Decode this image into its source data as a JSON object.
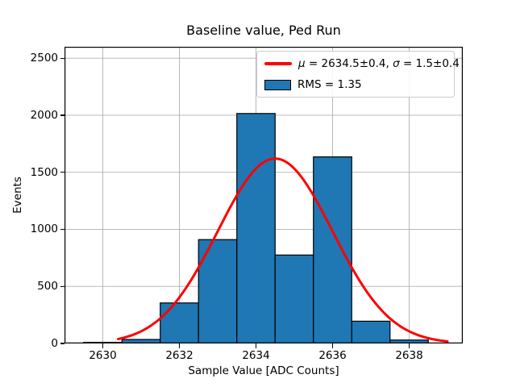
{
  "figure": {
    "title": "Baseline value, Ped Run",
    "xlabel": "Sample Value [ADC Counts]",
    "ylabel": "Events"
  },
  "legend": {
    "fit": {
      "mu": "μ",
      "mu_rest": " = 2634.5±0.4, ",
      "sigma": "σ",
      "sigma_rest": " = 1.5±0.4"
    },
    "rms_label": "RMS = 1.35"
  },
  "colors": {
    "bar_fill": "#1f77b4",
    "bar_edge": "#000000",
    "fit_line": "#ff0000",
    "grid": "#b0b0b0",
    "axis": "#000000",
    "legend_border": "#cccccc"
  },
  "chart_data": {
    "type": "bar",
    "subtype": "histogram",
    "title": "Baseline value, Ped Run",
    "xlabel": "Sample Value [ADC Counts]",
    "ylabel": "Events",
    "bin_centers": [
      2630,
      2631,
      2632,
      2633,
      2634,
      2635,
      2636,
      2637,
      2638
    ],
    "bin_width": 1,
    "values": [
      10,
      35,
      355,
      910,
      2015,
      775,
      1635,
      195,
      30
    ],
    "xticks": [
      2630,
      2632,
      2634,
      2636,
      2638
    ],
    "yticks": [
      0,
      500,
      1000,
      1500,
      2000,
      2500
    ],
    "xlim": [
      2629.0,
      2639.4
    ],
    "ylim": [
      0,
      2600
    ],
    "grid": true,
    "legend_position": "upper right",
    "legend_entries": [
      "μ = 2634.5±0.4, σ = 1.5±0.4",
      "RMS = 1.35"
    ],
    "fit_curve": {
      "shape": "gaussian",
      "mu": 2634.5,
      "sigma": 1.5,
      "amplitude": 1620,
      "x_start": 2630.4,
      "x_end": 2639.0
    }
  }
}
